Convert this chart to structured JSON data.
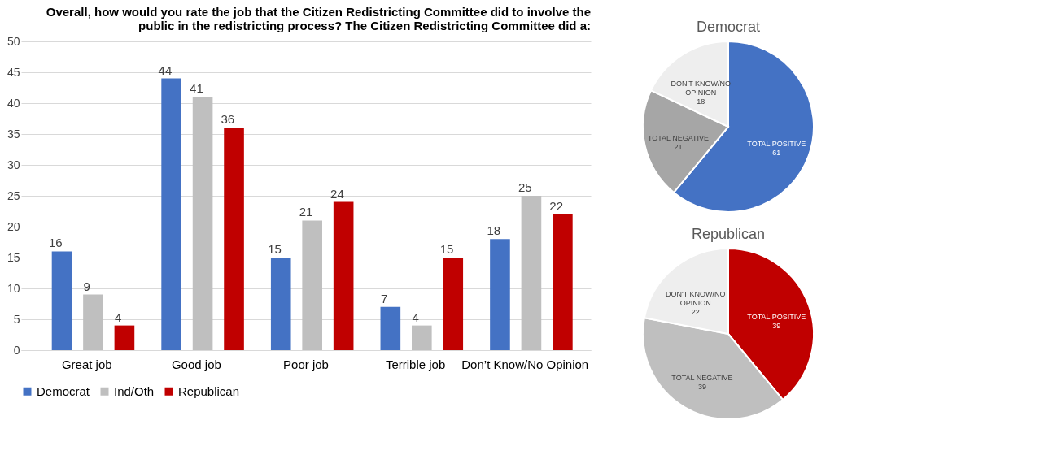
{
  "chart_data": [
    {
      "type": "bar",
      "title": "Overall, how would you rate the job that the Citizen Redistricting Committee did to involve the public in the redistricting process? The Citizen Redistricting Committee did a:",
      "categories": [
        "Great job",
        "Good job",
        "Poor job",
        "Terrible job",
        "Don’t Know/No Opinion"
      ],
      "series": [
        {
          "name": "Democrat",
          "color": "#4472c4",
          "values": [
            16,
            44,
            15,
            7,
            18
          ]
        },
        {
          "name": "Ind/Oth",
          "color": "#bfbfbf",
          "values": [
            9,
            41,
            21,
            4,
            25
          ]
        },
        {
          "name": "Republican",
          "color": "#c00000",
          "values": [
            4,
            36,
            24,
            15,
            22
          ]
        }
      ],
      "ylim": [
        0,
        50
      ],
      "yticks": [
        0,
        5,
        10,
        15,
        20,
        25,
        30,
        35,
        40,
        45,
        50
      ],
      "grid": "y",
      "legend": "bottom",
      "data_labels": true
    },
    {
      "type": "pie",
      "title": "Democrat",
      "categories": [
        "TOTAL POSITIVE",
        "TOTAL NEGATIVE",
        "DON'T KNOW/NO OPINION"
      ],
      "values": [
        61,
        21,
        18
      ],
      "colors": [
        "#4472c4",
        "#a6a6a6",
        "#eeeeee"
      ],
      "data_labels": true
    },
    {
      "type": "pie",
      "title": "Republican",
      "categories": [
        "TOTAL POSITIVE",
        "TOTAL NEGATIVE",
        "DON'T KNOW/NO OPINION"
      ],
      "values": [
        39,
        39,
        22
      ],
      "colors": [
        "#c00000",
        "#bfbfbf",
        "#eeeeee"
      ],
      "data_labels": true
    }
  ]
}
